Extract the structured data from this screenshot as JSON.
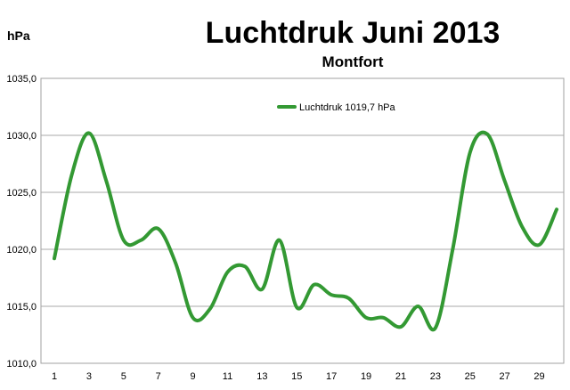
{
  "chart_data": {
    "type": "line",
    "title": "Luchtdruk Juni 2013",
    "subtitle": "Montfort",
    "ylabel": "hPa",
    "xlabel": "",
    "x": [
      1,
      2,
      3,
      4,
      5,
      6,
      7,
      8,
      9,
      10,
      11,
      12,
      13,
      14,
      15,
      16,
      17,
      18,
      19,
      20,
      21,
      22,
      23,
      24,
      25,
      26,
      27,
      28,
      29,
      30
    ],
    "xticks": [
      "1",
      "3",
      "5",
      "7",
      "9",
      "11",
      "13",
      "15",
      "17",
      "19",
      "21",
      "23",
      "25",
      "27",
      "29"
    ],
    "yticks": [
      "1010,0",
      "1015,0",
      "1020,0",
      "1025,0",
      "1030,0",
      "1035,0"
    ],
    "ylim": [
      1010,
      1035
    ],
    "grid": true,
    "legend_position": "top-center",
    "series": [
      {
        "name": "Luchtdruk 1019,7 hPa",
        "color": "#339933",
        "values": [
          1019.2,
          1026.5,
          1030.2,
          1026.0,
          1020.8,
          1020.8,
          1021.8,
          1018.8,
          1014.0,
          1014.8,
          1018.0,
          1018.5,
          1016.5,
          1020.8,
          1014.9,
          1016.9,
          1016.0,
          1015.7,
          1014.0,
          1014.0,
          1013.2,
          1015.0,
          1013.1,
          1020.0,
          1028.5,
          1030.1,
          1026.0,
          1022.0,
          1020.4,
          1023.5
        ]
      }
    ]
  }
}
